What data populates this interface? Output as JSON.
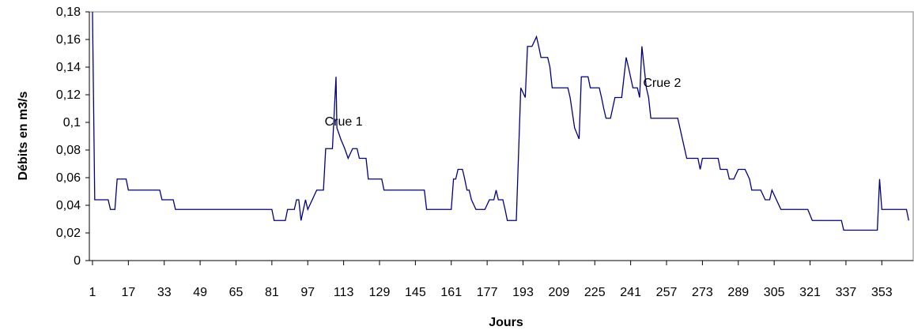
{
  "chart_data": {
    "type": "line",
    "x_label": "Jours",
    "y_label": "Débits en  m3/s",
    "annotations": [
      {
        "text": "Crue 1",
        "x": 113,
        "y": 0.1
      },
      {
        "text": "Crue 2",
        "x": 255,
        "y": 0.128
      }
    ],
    "xlim": [
      -0.4,
      367
    ],
    "xticks": [
      1,
      17,
      33,
      49,
      65,
      81,
      97,
      113,
      129,
      145,
      161,
      177,
      193,
      209,
      225,
      241,
      257,
      273,
      289,
      305,
      321,
      337,
      353
    ],
    "ylim": [
      0,
      0.18
    ],
    "yticks": [
      0,
      {
        "value": 0.02,
        "label": "0,02"
      },
      {
        "value": 0.04,
        "label": "0,04"
      },
      {
        "value": 0.06,
        "label": "0,06"
      },
      {
        "value": 0.08,
        "label": "0,08"
      },
      {
        "value": 0.1,
        "label": "0,1"
      },
      {
        "value": 0.12,
        "label": "0,12"
      },
      {
        "value": 0.14,
        "label": "0,14"
      },
      {
        "value": 0.16,
        "label": "0,16"
      },
      {
        "value": 0.18,
        "label": "0,18"
      }
    ],
    "grid": false,
    "series": [
      {
        "color": "#000080",
        "x": [
          1,
          2,
          8,
          9,
          11,
          12,
          16,
          17,
          31,
          32,
          37,
          38,
          81,
          82,
          87,
          88,
          91,
          92,
          93,
          94,
          96,
          97,
          101,
          104,
          105,
          108,
          109.6,
          110,
          111.7,
          113.5,
          115,
          117,
          119,
          120,
          123,
          124,
          130,
          131,
          149,
          150,
          161,
          162,
          163,
          164,
          166,
          167,
          168,
          169,
          170,
          172,
          176,
          178,
          180,
          181,
          182,
          184,
          185,
          186,
          190,
          192,
          194,
          195,
          197,
          199,
          200,
          201,
          204,
          205,
          206,
          213,
          214,
          216,
          218,
          219,
          222,
          223,
          227,
          228,
          229,
          230,
          232,
          234,
          237,
          239,
          240,
          242,
          244,
          245,
          246,
          248,
          249,
          250,
          262,
          266,
          271,
          272,
          273,
          280,
          281,
          284,
          285,
          287,
          289,
          292,
          294,
          295,
          299,
          301,
          303,
          304,
          306,
          308,
          320,
          322,
          335,
          336,
          351,
          352,
          353,
          364,
          365
        ],
        "values": [
          0.18,
          0.044,
          0.044,
          0.037,
          0.037,
          0.059,
          0.059,
          0.051,
          0.051,
          0.044,
          0.044,
          0.037,
          0.037,
          0.029,
          0.029,
          0.037,
          0.037,
          0.044,
          0.044,
          0.029,
          0.044,
          0.037,
          0.051,
          0.051,
          0.081,
          0.081,
          0.133,
          0.096,
          0.088,
          0.081,
          0.074,
          0.081,
          0.081,
          0.074,
          0.074,
          0.059,
          0.059,
          0.051,
          0.051,
          0.037,
          0.037,
          0.059,
          0.059,
          0.066,
          0.066,
          0.059,
          0.051,
          0.051,
          0.044,
          0.037,
          0.037,
          0.044,
          0.044,
          0.051,
          0.044,
          0.044,
          0.037,
          0.029,
          0.029,
          0.125,
          0.118,
          0.155,
          0.155,
          0.162,
          0.155,
          0.147,
          0.147,
          0.14,
          0.125,
          0.125,
          0.118,
          0.096,
          0.088,
          0.133,
          0.133,
          0.125,
          0.125,
          0.118,
          0.11,
          0.103,
          0.103,
          0.118,
          0.118,
          0.147,
          0.14,
          0.125,
          0.125,
          0.118,
          0.155,
          0.125,
          0.118,
          0.103,
          0.103,
          0.074,
          0.074,
          0.066,
          0.074,
          0.074,
          0.066,
          0.066,
          0.059,
          0.059,
          0.066,
          0.066,
          0.059,
          0.051,
          0.051,
          0.044,
          0.044,
          0.051,
          0.044,
          0.037,
          0.037,
          0.029,
          0.029,
          0.022,
          0.022,
          0.059,
          0.037,
          0.037,
          0.029
        ]
      }
    ]
  }
}
